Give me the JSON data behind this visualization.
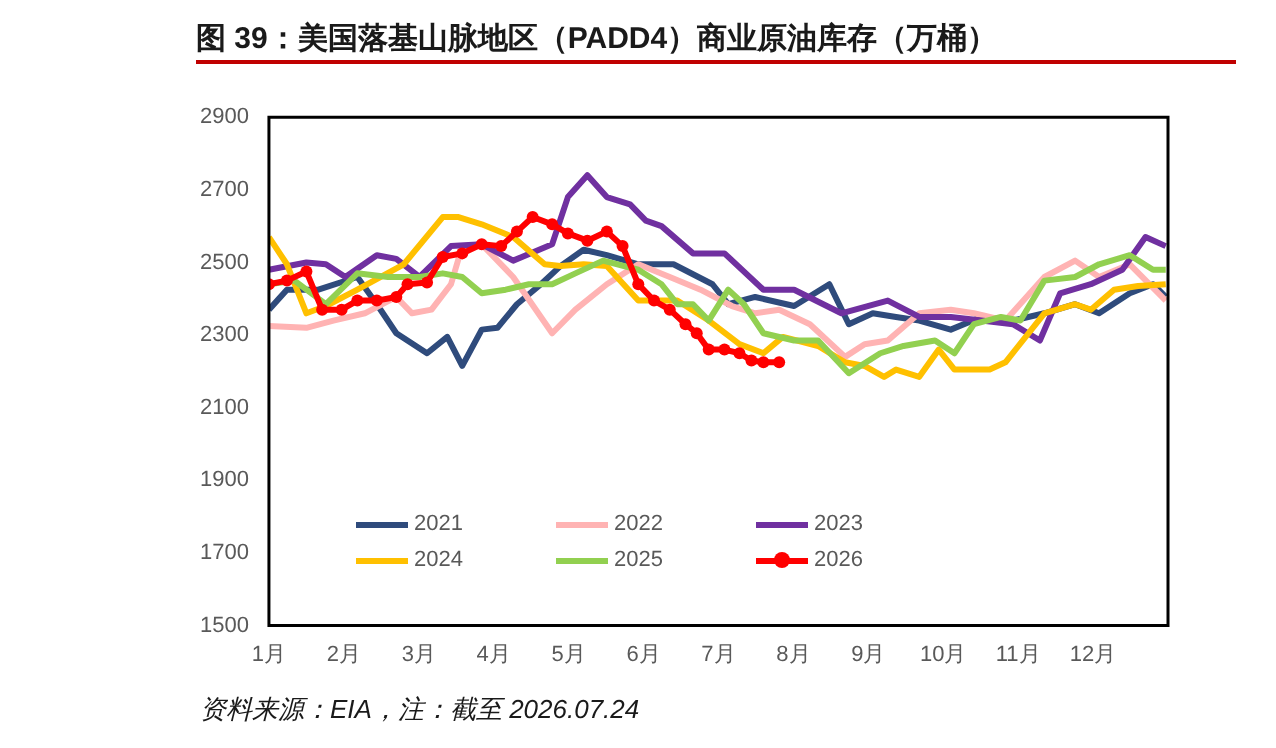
{
  "chart_data": {
    "type": "line",
    "title": "图 39：美国落基山脉地区（PADD4）商业原油库存（万桶）",
    "annotations": [
      "资料来源：EIA，注：截至 2026.07.24"
    ],
    "xlim": [
      1,
      13
    ],
    "xticks": [
      {
        "value": 1,
        "label": "1月"
      },
      {
        "value": 2,
        "label": "2月"
      },
      {
        "value": 3,
        "label": "3月"
      },
      {
        "value": 4,
        "label": "4月"
      },
      {
        "value": 5,
        "label": "5月"
      },
      {
        "value": 6,
        "label": "6月"
      },
      {
        "value": 7,
        "label": "7月"
      },
      {
        "value": 8,
        "label": "8月"
      },
      {
        "value": 9,
        "label": "9月"
      },
      {
        "value": 10,
        "label": "10月"
      },
      {
        "value": 11,
        "label": "11月"
      },
      {
        "value": 12,
        "label": "12月"
      }
    ],
    "ylim": [
      1500,
      2900
    ],
    "yticks": [
      1500,
      1700,
      1900,
      2100,
      2300,
      2500,
      2700,
      2900
    ],
    "grid": false,
    "legend": "bottom",
    "marker": "none",
    "line_style": "solid",
    "series": [
      {
        "name": "2021",
        "color": "#2f4b7c",
        "x": [
          1.0,
          1.24,
          1.66,
          2.18,
          2.44,
          2.7,
          3.11,
          3.38,
          3.58,
          3.84,
          4.05,
          4.31,
          4.63,
          4.89,
          5.2,
          5.51,
          5.93,
          6.4,
          6.92,
          7.13,
          7.49,
          8.01,
          8.48,
          8.74,
          9.06,
          9.37,
          9.68,
          10.1,
          10.51,
          10.93,
          11.35,
          11.76,
          12.08,
          12.49,
          12.8,
          12.97
        ],
        "values": [
          2370,
          2425,
          2425,
          2460,
          2385,
          2305,
          2250,
          2295,
          2215,
          2315,
          2320,
          2385,
          2440,
          2490,
          2535,
          2520,
          2495,
          2495,
          2440,
          2385,
          2405,
          2380,
          2440,
          2330,
          2360,
          2350,
          2340,
          2315,
          2350,
          2340,
          2360,
          2385,
          2360,
          2415,
          2440,
          2405
        ]
      },
      {
        "name": "2022",
        "color": "#ffb3b3",
        "x": [
          1.0,
          1.5,
          1.86,
          2.28,
          2.7,
          2.91,
          3.17,
          3.43,
          3.58,
          3.84,
          4.26,
          4.78,
          5.09,
          5.51,
          5.93,
          6.35,
          6.76,
          7.18,
          7.49,
          7.81,
          8.22,
          8.69,
          8.95,
          9.26,
          9.68,
          10.1,
          10.41,
          10.83,
          11.35,
          11.76,
          12.08,
          12.49,
          12.97
        ],
        "values": [
          2325,
          2320,
          2340,
          2360,
          2405,
          2360,
          2370,
          2440,
          2545,
          2550,
          2460,
          2305,
          2370,
          2440,
          2495,
          2460,
          2425,
          2380,
          2360,
          2370,
          2330,
          2240,
          2275,
          2285,
          2360,
          2370,
          2360,
          2340,
          2460,
          2505,
          2460,
          2495,
          2395
        ]
      },
      {
        "name": "2023",
        "color": "#7030a0",
        "x": [
          1.0,
          1.5,
          1.76,
          2.02,
          2.44,
          2.7,
          3.01,
          3.43,
          3.84,
          4.26,
          4.78,
          4.99,
          5.25,
          5.51,
          5.82,
          6.03,
          6.24,
          6.66,
          7.08,
          7.6,
          8.01,
          8.64,
          9.26,
          9.68,
          10.1,
          10.51,
          10.93,
          11.29,
          11.56,
          11.97,
          12.39,
          12.7,
          12.97
        ],
        "values": [
          2480,
          2500,
          2495,
          2460,
          2520,
          2510,
          2460,
          2545,
          2550,
          2505,
          2550,
          2680,
          2740,
          2680,
          2660,
          2615,
          2600,
          2525,
          2525,
          2425,
          2425,
          2360,
          2395,
          2350,
          2350,
          2340,
          2330,
          2285,
          2415,
          2440,
          2480,
          2570,
          2545
        ]
      },
      {
        "name": "2024",
        "color": "#ffc000",
        "x": [
          1.0,
          1.24,
          1.5,
          1.76,
          2.18,
          2.8,
          3.32,
          3.53,
          3.84,
          4.26,
          4.68,
          4.89,
          5.2,
          5.51,
          5.93,
          6.45,
          6.87,
          7.28,
          7.6,
          7.86,
          8.33,
          8.69,
          8.95,
          9.21,
          9.37,
          9.68,
          9.94,
          10.15,
          10.62,
          10.83,
          11.35,
          11.76,
          11.97,
          12.28,
          12.6,
          12.97
        ],
        "values": [
          2570,
          2495,
          2360,
          2380,
          2425,
          2495,
          2625,
          2625,
          2605,
          2570,
          2495,
          2490,
          2495,
          2490,
          2395,
          2395,
          2340,
          2275,
          2250,
          2295,
          2270,
          2225,
          2215,
          2185,
          2205,
          2185,
          2260,
          2205,
          2205,
          2225,
          2360,
          2385,
          2370,
          2425,
          2435,
          2440
        ]
      },
      {
        "name": "2025",
        "color": "#92d050",
        "x": [
          1.0,
          1.34,
          1.76,
          2.18,
          2.59,
          3.01,
          3.32,
          3.58,
          3.84,
          4.16,
          4.47,
          4.78,
          5.09,
          5.46,
          5.93,
          6.24,
          6.45,
          6.66,
          6.87,
          7.13,
          7.34,
          7.6,
          8.01,
          8.33,
          8.74,
          9.16,
          9.47,
          9.89,
          10.15,
          10.41,
          10.77,
          11.03,
          11.35,
          11.76,
          12.08,
          12.49,
          12.8,
          12.97
        ],
        "values": [
          2440,
          2450,
          2385,
          2470,
          2460,
          2460,
          2470,
          2460,
          2415,
          2425,
          2440,
          2440,
          2470,
          2505,
          2480,
          2440,
          2385,
          2385,
          2340,
          2425,
          2385,
          2305,
          2285,
          2285,
          2195,
          2250,
          2270,
          2285,
          2250,
          2330,
          2350,
          2340,
          2450,
          2460,
          2495,
          2520,
          2480,
          2480
        ]
      },
      {
        "name": "2026",
        "color": "#ff0000",
        "marker": "circle",
        "x": [
          1.0,
          1.24,
          1.5,
          1.71,
          1.97,
          2.18,
          2.44,
          2.7,
          2.85,
          3.11,
          3.32,
          3.58,
          3.84,
          4.1,
          4.31,
          4.52,
          4.78,
          4.99,
          5.25,
          5.51,
          5.72,
          5.93,
          6.14,
          6.35,
          6.56,
          6.71,
          6.87,
          7.08,
          7.28,
          7.44,
          7.6,
          7.81
        ],
        "values": [
          2440,
          2450,
          2475,
          2370,
          2370,
          2395,
          2395,
          2405,
          2440,
          2445,
          2515,
          2525,
          2550,
          2545,
          2585,
          2625,
          2605,
          2580,
          2560,
          2585,
          2545,
          2440,
          2395,
          2370,
          2330,
          2305,
          2260,
          2260,
          2250,
          2230,
          2225,
          2225
        ]
      }
    ]
  }
}
